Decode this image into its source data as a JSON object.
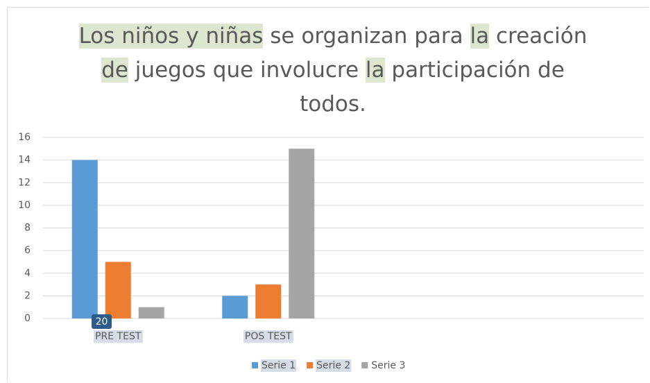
{
  "chart_data": {
    "type": "bar",
    "title_lines": [
      [
        {
          "text": "Los niños y niñas",
          "highlight": true
        },
        {
          "text": " se organizan para ",
          "highlight": false
        },
        {
          "text": "la",
          "highlight": true
        },
        {
          "text": " creación",
          "highlight": false
        }
      ],
      [
        {
          "text": "de",
          "highlight": true
        },
        {
          "text": " juegos que involucre ",
          "highlight": false
        },
        {
          "text": "la",
          "highlight": true
        },
        {
          "text": " participación de",
          "highlight": false
        }
      ],
      [
        {
          "text": "todos.",
          "highlight": false
        }
      ]
    ],
    "categories": [
      "PRE TEST",
      "POS TEST",
      null,
      null
    ],
    "category_highlight": true,
    "series": [
      {
        "name": "Serie 1",
        "color": "#5b9bd5",
        "values": [
          14,
          2,
          null,
          null
        ],
        "highlight": true
      },
      {
        "name": "Serie 2",
        "color": "#ed7d31",
        "values": [
          5,
          3,
          null,
          null
        ],
        "highlight": true
      },
      {
        "name": "Serie 3",
        "color": "#a5a5a5",
        "values": [
          1,
          15,
          null,
          null
        ],
        "highlight": false
      }
    ],
    "badge": "20",
    "ylim": [
      0,
      16
    ],
    "yticks": [
      0,
      2,
      4,
      6,
      8,
      10,
      12,
      14,
      16
    ],
    "grid": true,
    "legend": "bottom"
  }
}
